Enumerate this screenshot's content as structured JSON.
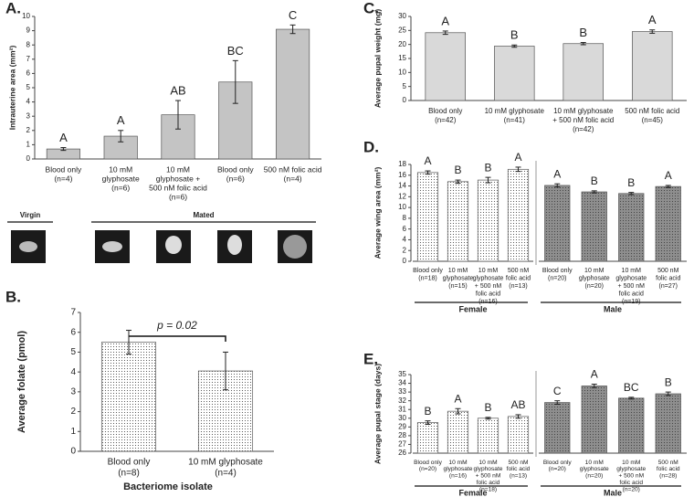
{
  "chart_data": [
    {
      "type": "bar",
      "panel": "A.",
      "ylabel": "Intrauterine area (mm²)",
      "ylim": [
        0,
        10
      ],
      "yticks": [
        0,
        1,
        2,
        3,
        4,
        5,
        6,
        7,
        8,
        9,
        10
      ],
      "image_labels": [
        "Virgin",
        "Mated"
      ],
      "groups": [
        {
          "color": "#c4c4c4",
          "pattern": "none",
          "categories": [
            [
              "Blood only",
              "(n=4)"
            ],
            [
              "10 mM",
              "glyphosate",
              "(n=6)"
            ],
            [
              "10 mM",
              "glyphosate +",
              "500 nM folic acid",
              "(n=6)"
            ],
            [
              "Blood only",
              "(n=6)"
            ],
            [
              "500 nM folic acid",
              "(n=4)"
            ]
          ],
          "values": [
            0.7,
            1.6,
            3.1,
            5.4,
            9.1
          ],
          "errors": [
            0.1,
            0.4,
            1.0,
            1.5,
            0.3
          ],
          "letters": [
            "A",
            "A",
            "AB",
            "BC",
            "C"
          ]
        }
      ]
    },
    {
      "type": "bar",
      "panel": "B.",
      "ylabel": "Average folate (pmol)",
      "xlabel": "Bacteriome isolate",
      "annotation": "p = 0.02",
      "ylim": [
        0,
        7
      ],
      "yticks": [
        0,
        1,
        2,
        3,
        4,
        5,
        6,
        7
      ],
      "groups": [
        {
          "color": "#ffffff",
          "pattern": "dots",
          "categories": [
            [
              "Blood only",
              "(n=8)"
            ],
            [
              "10 mM glyphosate",
              "(n=4)"
            ]
          ],
          "values": [
            5.5,
            4.05
          ],
          "errors": [
            0.6,
            0.95
          ]
        }
      ]
    },
    {
      "type": "bar",
      "panel": "C.",
      "ylabel": "Average pupal weight (mg)",
      "ylim": [
        0,
        30
      ],
      "yticks": [
        0,
        5,
        10,
        15,
        20,
        25,
        30
      ],
      "groups": [
        {
          "color": "#d9d9d9",
          "pattern": "none",
          "categories": [
            [
              "Blood only",
              "(n=42)"
            ],
            [
              "10 mM glyphosate",
              "(n=41)"
            ],
            [
              "10 mM glyphosate",
              "+ 500 nM folic acid",
              "(n=42)"
            ],
            [
              "500 nM folic acid",
              "(n=45)"
            ]
          ],
          "values": [
            24.2,
            19.4,
            20.3,
            24.6
          ],
          "errors": [
            0.6,
            0.4,
            0.4,
            0.6
          ],
          "letters": [
            "A",
            "B",
            "B",
            "A"
          ]
        }
      ]
    },
    {
      "type": "bar",
      "panel": "D.",
      "ylabel": "Average wing area (mm²)",
      "ylim": [
        0,
        18
      ],
      "yticks": [
        0,
        2,
        4,
        6,
        8,
        10,
        12,
        14,
        16,
        18
      ],
      "groups": [
        {
          "name": "Female",
          "color": "#ffffff",
          "pattern": "dots",
          "categories": [
            [
              "Blood only",
              "(n=18)"
            ],
            [
              "10 mM",
              "glyphosate",
              "(n=15)"
            ],
            [
              "10 mM",
              "glyphosate",
              "+ 500 nM",
              "folic acid",
              "(n=16)"
            ],
            [
              "500 nM",
              "folic acid",
              "(n=13)"
            ]
          ],
          "values": [
            16.5,
            14.8,
            15.1,
            17.1
          ],
          "errors": [
            0.3,
            0.3,
            0.5,
            0.4
          ],
          "letters": [
            "A",
            "B",
            "B",
            "A"
          ]
        },
        {
          "name": "Male",
          "color": "#8e8e8e",
          "pattern": "dots",
          "categories": [
            [
              "Blood only",
              "(n=20)"
            ],
            [
              "10 mM",
              "glyphosate",
              "(n=20)"
            ],
            [
              "10 mM",
              "glyphosate",
              "+ 500 nM",
              "folic acid",
              "(n=19)"
            ],
            [
              "500 nM",
              "folic acid",
              "(n=27)"
            ]
          ],
          "values": [
            14.1,
            12.9,
            12.6,
            13.9
          ],
          "errors": [
            0.3,
            0.2,
            0.2,
            0.2
          ],
          "letters": [
            "A",
            "B",
            "B",
            "A"
          ]
        }
      ]
    },
    {
      "type": "bar",
      "panel": "E.",
      "ylabel": "Average pupal stage (days)",
      "ylim": [
        26,
        35
      ],
      "yticks": [
        26,
        27,
        28,
        29,
        30,
        31,
        32,
        33,
        34,
        35
      ],
      "groups": [
        {
          "name": "Female",
          "color": "#ffffff",
          "pattern": "dots",
          "categories": [
            [
              "Blood only",
              "(n=20)"
            ],
            [
              "10 mM",
              "glyphosate",
              "(n=16)"
            ],
            [
              "10 mM",
              "glyphosate",
              "+ 500 nM",
              "folic acid",
              "(n=18)"
            ],
            [
              "500 nM",
              "folic acid",
              "(n=13)"
            ]
          ],
          "values": [
            29.5,
            30.8,
            30.0,
            30.2
          ],
          "errors": [
            0.2,
            0.3,
            0.1,
            0.2
          ],
          "letters": [
            "B",
            "A",
            "B",
            "AB"
          ]
        },
        {
          "name": "Male",
          "color": "#8e8e8e",
          "pattern": "dots",
          "categories": [
            [
              "Blood only",
              "(n=20)"
            ],
            [
              "10 mM",
              "glyphosate",
              "(n=20)"
            ],
            [
              "10 mM",
              "glyphosate",
              "+ 500 nM",
              "folic acid",
              "(n=20)"
            ],
            [
              "500 nM",
              "folic acid",
              "(n=28)"
            ]
          ],
          "values": [
            31.8,
            33.7,
            32.3,
            32.8
          ],
          "errors": [
            0.2,
            0.2,
            0.1,
            0.2
          ],
          "letters": [
            "C",
            "A",
            "BC",
            "B"
          ]
        }
      ]
    }
  ]
}
